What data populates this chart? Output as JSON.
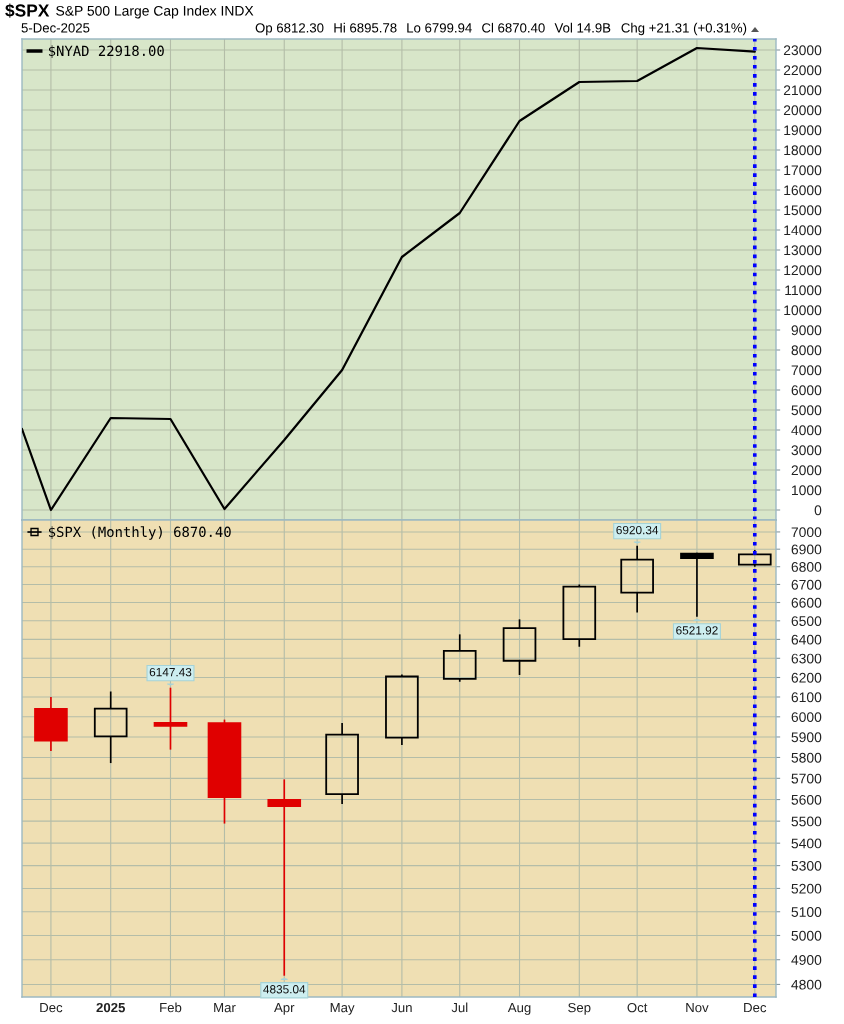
{
  "chart_data": [
    {
      "type": "line",
      "title": "$SPX",
      "subtitle": "S&P 500 Large Cap Index INDX",
      "annotations": [
        "5-Dec-2025",
        "Op 6812.30",
        "Hi 6895.78",
        "Lo 6799.94",
        "Cl 6870.40",
        "Vol 14.9B",
        "Chg +21.31 (+0.31%)"
      ],
      "x": [
        "2024-11-16",
        "2024-12",
        "2025-01",
        "2025-02",
        "2025-03",
        "2025-04",
        "2025-05",
        "2025-06",
        "2025-07",
        "2025-08",
        "2025-09",
        "2025-10",
        "2025-11",
        "2025-12"
      ],
      "series": [
        {
          "name": "$NYAD 22918.00",
          "color": "#000000",
          "values": [
            4050,
            0,
            4600,
            4550,
            50,
            3500,
            7000,
            12650,
            14850,
            19450,
            21400,
            21450,
            23100,
            22918
          ]
        }
      ],
      "xlim": [
        "2024-11-16",
        "2025-12-12"
      ],
      "xticks": [
        {
          "value": "2024-12",
          "label": null
        },
        {
          "value": "2025-01",
          "label": null
        },
        {
          "value": "2025-02",
          "label": null
        },
        {
          "value": "2025-03",
          "label": null
        },
        {
          "value": "2025-04",
          "label": null
        },
        {
          "value": "2025-05",
          "label": null
        },
        {
          "value": "2025-06",
          "label": null
        },
        {
          "value": "2025-07",
          "label": null
        },
        {
          "value": "2025-08",
          "label": null
        },
        {
          "value": "2025-09",
          "label": null
        },
        {
          "value": "2025-10",
          "label": null
        },
        {
          "value": "2025-11",
          "label": null
        },
        {
          "value": "2025-12",
          "label": null
        }
      ],
      "ylim": [
        -500,
        23550
      ],
      "yticks": [
        0,
        1000,
        2000,
        3000,
        4000,
        5000,
        6000,
        7000,
        8000,
        9000,
        10000,
        11000,
        12000,
        13000,
        14000,
        15000,
        16000,
        17000,
        18000,
        19000,
        20000,
        21000,
        22000,
        23000
      ],
      "tick_labels": "y",
      "grid": true,
      "legend": "top left",
      "ref_lines": [
        {
          "axis": "x",
          "value": "2025-12",
          "color": "#0000ff",
          "line_style": "dotted"
        }
      ]
    },
    {
      "type": "candlestick",
      "x": [
        "2024-12",
        "2025-01",
        "2025-02",
        "2025-03",
        "2025-04",
        "2025-05",
        "2025-06",
        "2025-07",
        "2025-08",
        "2025-09",
        "2025-10",
        "2025-11",
        "2025-12"
      ],
      "series": [
        {
          "name": "$SPX (Monthly) 6870.40",
          "ohlc": [
            [
              6040,
              6100,
              5832,
              5882
            ],
            [
              5903,
              6128,
              5773,
              6041
            ],
            [
              5970,
              6147.43,
              5838,
              5955
            ],
            [
              5968,
              5986,
              5489,
              5612
            ],
            [
              5598,
              5695,
              4835.04,
              5569
            ],
            [
              5625,
              5969,
              5579,
              5912
            ],
            [
              5897,
              6215,
              5861,
              6205
            ],
            [
              6193,
              6427,
              6178,
              6339
            ],
            [
              6287,
              6508,
              6213,
              6460
            ],
            [
              6402,
              6700,
              6361,
              6688
            ],
            [
              6655,
              6920.34,
              6545,
              6840
            ],
            [
              6875,
              6880,
              6521.92,
              6849
            ],
            [
              6812.3,
              6895.78,
              6799.94,
              6870.4
            ]
          ],
          "colors": [
            "#e00000",
            "#000000",
            "#e00000",
            "#e00000",
            "#e00000",
            "#000000",
            "#000000",
            "#000000",
            "#000000",
            "#000000",
            "#000000",
            "#000000",
            "#000000"
          ]
        }
      ],
      "xlim": [
        "2024-11-16",
        "2025-12-12"
      ],
      "xticks": [
        {
          "value": "2024-12",
          "label": "Dec"
        },
        {
          "value": "2025-01",
          "label": "2025"
        },
        {
          "value": "2025-02",
          "label": "Feb"
        },
        {
          "value": "2025-03",
          "label": "Mar"
        },
        {
          "value": "2025-04",
          "label": "Apr"
        },
        {
          "value": "2025-05",
          "label": "May"
        },
        {
          "value": "2025-06",
          "label": "Jun"
        },
        {
          "value": "2025-07",
          "label": "Jul"
        },
        {
          "value": "2025-08",
          "label": "Aug"
        },
        {
          "value": "2025-09",
          "label": "Sep"
        },
        {
          "value": "2025-10",
          "label": "Oct"
        },
        {
          "value": "2025-11",
          "label": "Nov"
        },
        {
          "value": "2025-12",
          "label": "Dec"
        }
      ],
      "log": "y",
      "ylim": [
        4750,
        7070
      ],
      "yticks": [
        4800,
        4900,
        5000,
        5100,
        5200,
        5300,
        5400,
        5500,
        5600,
        5700,
        5800,
        5900,
        6000,
        6100,
        6200,
        6300,
        6400,
        6500,
        6600,
        6700,
        6800,
        6900,
        7000
      ],
      "grid": true,
      "legend": "top left",
      "annotations": [
        {
          "text": "6147.43",
          "x": "2025-02",
          "y": 6147.43
        },
        {
          "text": "4835.04",
          "x": "2025-04",
          "y": 4835.04
        },
        {
          "text": "6920.34",
          "x": "2025-10",
          "y": 6920.34
        },
        {
          "text": "6521.92",
          "x": "2025-11",
          "y": 6521.92
        }
      ],
      "ref_lines": [
        {
          "axis": "x",
          "value": "2025-12",
          "color": "#0000ff",
          "line_style": "dotted"
        }
      ]
    }
  ]
}
